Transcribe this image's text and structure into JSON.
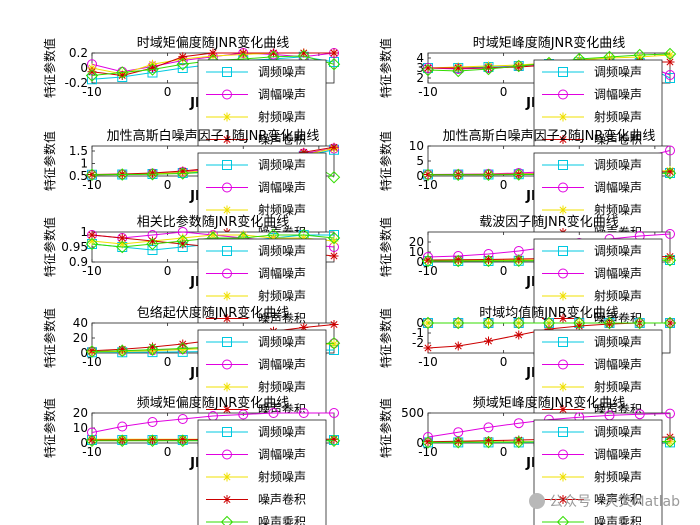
{
  "watermark": "公众号 · 天天Matlab",
  "chart_data": [
    {
      "type": "line",
      "title": "时域矩偏度随JNR变化曲线",
      "ylabel": "特征参数值",
      "xlabel": "JNR",
      "xlim": [
        -10,
        22
      ],
      "ylim": [
        -0.2,
        0.2
      ],
      "xticks": [
        "-10",
        "0",
        "10",
        "20"
      ],
      "yticks": [
        "-0.2",
        "0",
        "0.2"
      ],
      "x": [
        -10,
        -6,
        -2,
        2,
        6,
        10,
        14,
        18,
        22
      ],
      "series": [
        {
          "name": "调频噪声",
          "values": [
            -0.15,
            -0.12,
            -0.06,
            0.0,
            0.05,
            0.1,
            0.12,
            0.15,
            0.08
          ]
        },
        {
          "name": "调幅噪声",
          "values": [
            0.05,
            -0.05,
            0.02,
            0.1,
            0.15,
            0.2,
            0.18,
            0.15,
            0.2
          ]
        },
        {
          "name": "射频噪声",
          "values": [
            0.0,
            -0.08,
            0.05,
            0.12,
            0.16,
            0.18,
            0.2,
            0.2,
            0.2
          ]
        },
        {
          "name": "噪声卷积",
          "values": [
            -0.05,
            -0.1,
            0.0,
            0.15,
            0.2,
            0.2,
            0.2,
            0.2,
            0.2
          ]
        },
        {
          "name": "噪声乘积",
          "values": [
            -0.1,
            -0.06,
            -0.02,
            0.05,
            0.1,
            0.12,
            0.15,
            0.16,
            0.05
          ]
        }
      ]
    },
    {
      "type": "line",
      "title": "时域矩峰度随JNR变化曲线",
      "ylabel": "特征参数值",
      "xlabel": "JNR",
      "xlim": [
        -10,
        22
      ],
      "ylim": [
        1.5,
        4.5
      ],
      "xticks": [
        "-10",
        "0",
        "10",
        "20"
      ],
      "yticks": [
        "2",
        "3",
        "4"
      ],
      "x": [
        -10,
        -6,
        -2,
        2,
        6,
        10,
        14,
        18,
        22
      ],
      "series": [
        {
          "name": "调频噪声",
          "values": [
            3.0,
            3.0,
            3.1,
            3.2,
            3.4,
            3.6,
            3.5,
            3.5,
            2.0
          ]
        },
        {
          "name": "调幅噪声",
          "values": [
            3.0,
            2.9,
            3.0,
            3.2,
            3.4,
            3.5,
            3.6,
            3.5,
            2.3
          ]
        },
        {
          "name": "射频噪声",
          "values": [
            3.0,
            3.1,
            3.2,
            3.3,
            3.5,
            3.8,
            4.0,
            4.1,
            4.3
          ]
        },
        {
          "name": "噪声卷积",
          "values": [
            3.0,
            3.0,
            3.0,
            3.1,
            3.3,
            3.4,
            3.5,
            3.6,
            3.6
          ]
        },
        {
          "name": "噪声乘积",
          "values": [
            2.8,
            2.7,
            2.9,
            3.2,
            3.5,
            3.9,
            4.1,
            4.3,
            4.4
          ]
        }
      ]
    },
    {
      "type": "line",
      "title": "加性高斯白噪声因子1随JNR变化曲线",
      "ylabel": "特征参数值",
      "xlabel": "JNR",
      "xlim": [
        -10,
        22
      ],
      "ylim": [
        0.5,
        1.7
      ],
      "xticks": [
        "-10",
        "0",
        "10",
        "20"
      ],
      "yticks": [
        "0.5",
        "1",
        "1.5"
      ],
      "x": [
        -10,
        -6,
        -2,
        2,
        6,
        10,
        14,
        18,
        22
      ],
      "series": [
        {
          "name": "调频噪声",
          "values": [
            0.55,
            0.56,
            0.58,
            0.62,
            0.7,
            0.85,
            1.05,
            1.3,
            1.55
          ]
        },
        {
          "name": "调幅噪声",
          "values": [
            0.55,
            0.57,
            0.6,
            0.66,
            0.78,
            0.95,
            1.15,
            1.4,
            1.6
          ]
        },
        {
          "name": "射频噪声",
          "values": [
            0.55,
            0.56,
            0.59,
            0.64,
            0.74,
            0.9,
            1.1,
            1.35,
            1.6
          ]
        },
        {
          "name": "噪声卷积",
          "values": [
            0.56,
            0.58,
            0.62,
            0.7,
            0.82,
            1.0,
            1.2,
            1.45,
            1.65
          ]
        },
        {
          "name": "噪声乘积",
          "values": [
            0.55,
            0.56,
            0.57,
            0.6,
            0.66,
            0.75,
            0.9,
            1.2,
            0.45
          ]
        }
      ]
    },
    {
      "type": "line",
      "title": "加性高斯白噪声因子2随JNR变化曲线",
      "ylabel": "特征参数值",
      "xlabel": "JNR",
      "xlim": [
        -10,
        22
      ],
      "ylim": [
        0,
        10
      ],
      "xticks": [
        "-10",
        "0",
        "10",
        "20"
      ],
      "yticks": [
        "0",
        "5",
        "10"
      ],
      "x": [
        -10,
        -6,
        -2,
        2,
        6,
        10,
        14,
        18,
        22
      ],
      "series": [
        {
          "name": "调频噪声",
          "values": [
            0.5,
            0.5,
            0.5,
            0.6,
            0.7,
            0.8,
            0.9,
            1.0,
            1.0
          ]
        },
        {
          "name": "调幅噪声",
          "values": [
            0.5,
            0.6,
            0.7,
            1.0,
            1.5,
            2.5,
            4.0,
            6.0,
            8.5
          ]
        },
        {
          "name": "射频噪声",
          "values": [
            0.5,
            0.5,
            0.6,
            0.7,
            0.8,
            1.0,
            1.2,
            1.5,
            1.8
          ]
        },
        {
          "name": "噪声卷积",
          "values": [
            0.5,
            0.5,
            0.5,
            0.6,
            0.7,
            0.9,
            1.0,
            1.2,
            1.4
          ]
        },
        {
          "name": "噪声乘积",
          "values": [
            0.4,
            0.4,
            0.4,
            0.5,
            0.5,
            0.6,
            0.7,
            0.8,
            0.9
          ]
        }
      ]
    },
    {
      "type": "line",
      "title": "相关比参数随JNR变化曲线",
      "ylabel": "特征参数值",
      "xlabel": "JNR",
      "xlim": [
        -10,
        22
      ],
      "ylim": [
        0.9,
        1.0
      ],
      "xticks": [
        "-10",
        "0",
        "10",
        "20"
      ],
      "yticks": [
        "0.9",
        "0.95",
        "1"
      ],
      "x": [
        -10,
        -6,
        -2,
        2,
        6,
        10,
        14,
        18,
        22
      ],
      "series": [
        {
          "name": "调频噪声",
          "values": [
            0.96,
            0.95,
            0.94,
            0.95,
            0.96,
            0.97,
            0.98,
            0.99,
            0.99
          ]
        },
        {
          "name": "调幅噪声",
          "values": [
            0.99,
            0.98,
            0.99,
            1.0,
            0.99,
            0.98,
            0.97,
            0.96,
            0.95
          ]
        },
        {
          "name": "射频噪声",
          "values": [
            0.97,
            0.96,
            0.97,
            0.98,
            0.99,
            0.99,
            0.98,
            0.98,
            0.97
          ]
        },
        {
          "name": "噪声卷积",
          "values": [
            0.99,
            0.98,
            0.97,
            0.96,
            0.95,
            0.95,
            0.94,
            0.93,
            0.92
          ]
        },
        {
          "name": "噪声乘积",
          "values": [
            0.96,
            0.95,
            0.96,
            0.97,
            0.98,
            0.98,
            0.99,
            0.99,
            0.98
          ]
        }
      ]
    },
    {
      "type": "line",
      "title": "载波因子随JNR变化曲线",
      "ylabel": "特征参数值",
      "xlabel": "JNR",
      "xlim": [
        -10,
        22
      ],
      "ylim": [
        0,
        30
      ],
      "xticks": [
        "-10",
        "0",
        "10",
        "20"
      ],
      "yticks": [
        "0",
        "10",
        "20"
      ],
      "x": [
        -10,
        -6,
        -2,
        2,
        6,
        10,
        14,
        18,
        22
      ],
      "series": [
        {
          "name": "调频噪声",
          "values": [
            1.0,
            1.0,
            1.0,
            1.2,
            1.4,
            1.6,
            1.8,
            2.0,
            2.0
          ]
        },
        {
          "name": "调幅噪声",
          "values": [
            5.0,
            6.0,
            8.0,
            11.0,
            15.0,
            19.0,
            23.0,
            26.0,
            28.0
          ]
        },
        {
          "name": "射频噪声",
          "values": [
            1.5,
            1.6,
            1.8,
            2.0,
            2.3,
            2.6,
            3.0,
            3.3,
            3.5
          ]
        },
        {
          "name": "噪声卷积",
          "values": [
            2.0,
            2.2,
            2.5,
            3.0,
            3.5,
            4.0,
            4.5,
            5.0,
            5.5
          ]
        },
        {
          "name": "噪声乘积",
          "values": [
            1.0,
            1.0,
            1.1,
            1.2,
            1.3,
            1.4,
            1.5,
            1.6,
            1.7
          ]
        }
      ]
    },
    {
      "type": "line",
      "title": "包络起伏度随JNR变化曲线",
      "ylabel": "特征参数值",
      "xlabel": "JNR",
      "xlim": [
        -10,
        22
      ],
      "ylim": [
        0,
        40
      ],
      "xticks": [
        "-10",
        "0",
        "10",
        "20"
      ],
      "yticks": [
        "0",
        "20",
        "40"
      ],
      "x": [
        -10,
        -6,
        -2,
        2,
        6,
        10,
        14,
        18,
        22
      ],
      "series": [
        {
          "name": "调频噪声",
          "values": [
            1.0,
            1.0,
            1.2,
            1.5,
            2.0,
            2.5,
            3.0,
            3.5,
            4.0
          ]
        },
        {
          "name": "调幅噪声",
          "values": [
            2.0,
            2.5,
            3.5,
            5.0,
            7.0,
            9.0,
            11.0,
            12.0,
            13.0
          ]
        },
        {
          "name": "射频噪声",
          "values": [
            1.5,
            2.0,
            3.0,
            4.5,
            6.5,
            8.5,
            10.0,
            11.0,
            12.0
          ]
        },
        {
          "name": "噪声卷积",
          "values": [
            3.0,
            5.0,
            8.0,
            12.0,
            17.0,
            23.0,
            29.0,
            34.0,
            38.0
          ]
        },
        {
          "name": "噪声乘积",
          "values": [
            2.0,
            3.0,
            4.5,
            6.0,
            8.0,
            9.5,
            11.0,
            12.0,
            13.0
          ]
        }
      ]
    },
    {
      "type": "line",
      "title": "时域均值随JNR变化曲线",
      "ylabel": "特征参数值",
      "xlabel": "JNR",
      "xlim": [
        -10,
        22
      ],
      "ylim": [
        -3,
        0
      ],
      "xticks": [
        "-10",
        "0",
        "10",
        "20"
      ],
      "yticks": [
        "-2",
        "-1",
        "0"
      ],
      "x": [
        -10,
        -6,
        -2,
        2,
        6,
        10,
        14,
        18,
        22
      ],
      "series": [
        {
          "name": "调频噪声",
          "values": [
            0.0,
            0.0,
            0.0,
            0.0,
            0.0,
            0.0,
            0.0,
            0.0,
            0.0
          ]
        },
        {
          "name": "调幅噪声",
          "values": [
            0.0,
            0.0,
            0.0,
            0.0,
            0.0,
            0.0,
            0.0,
            0.0,
            0.0
          ]
        },
        {
          "name": "射频噪声",
          "values": [
            0.0,
            0.0,
            0.0,
            0.0,
            0.0,
            0.0,
            0.0,
            0.0,
            0.0
          ]
        },
        {
          "name": "噪声卷积",
          "values": [
            -2.5,
            -2.3,
            -1.8,
            -1.2,
            -0.6,
            -0.3,
            -0.1,
            0.0,
            0.0
          ]
        },
        {
          "name": "噪声乘积",
          "values": [
            0.0,
            0.0,
            0.0,
            0.0,
            0.0,
            0.0,
            0.0,
            0.0,
            0.0
          ]
        }
      ]
    },
    {
      "type": "line",
      "title": "频域矩偏度随JNR变化曲线",
      "ylabel": "特征参数值",
      "xlabel": "JNR",
      "xlim": [
        -10,
        22
      ],
      "ylim": [
        0,
        20
      ],
      "xticks": [
        "-10",
        "0",
        "10",
        "20"
      ],
      "yticks": [
        "0",
        "10",
        "20"
      ],
      "x": [
        -10,
        -6,
        -2,
        2,
        6,
        10,
        14,
        18,
        22
      ],
      "series": [
        {
          "name": "调频噪声",
          "values": [
            2.0,
            2.0,
            2.0,
            2.0,
            2.0,
            2.0,
            2.0,
            2.0,
            2.0
          ]
        },
        {
          "name": "调幅噪声",
          "values": [
            7.0,
            11.0,
            14.0,
            16.0,
            18.0,
            19.0,
            20.0,
            20.0,
            20.0
          ]
        },
        {
          "name": "射频噪声",
          "values": [
            2.5,
            2.5,
            2.5,
            2.5,
            2.5,
            2.5,
            2.5,
            2.5,
            2.5
          ]
        },
        {
          "name": "噪声卷积",
          "values": [
            2.0,
            2.0,
            2.1,
            2.2,
            2.3,
            2.4,
            2.5,
            2.5,
            2.5
          ]
        },
        {
          "name": "噪声乘积",
          "values": [
            1.5,
            1.5,
            1.5,
            1.5,
            1.5,
            1.5,
            1.5,
            1.5,
            1.5
          ]
        }
      ]
    },
    {
      "type": "line",
      "title": "频域矩峰度随JNR变化曲线",
      "ylabel": "特征参数值",
      "xlabel": "JNR",
      "xlim": [
        -10,
        22
      ],
      "ylim": [
        0,
        500
      ],
      "xticks": [
        "-10",
        "0",
        "10",
        "20"
      ],
      "yticks": [
        "0",
        "500"
      ],
      "x": [
        -10,
        -6,
        -2,
        2,
        6,
        10,
        14,
        18,
        22
      ],
      "series": [
        {
          "name": "调频噪声",
          "values": [
            10,
            10,
            10,
            10,
            10,
            10,
            10,
            10,
            10
          ]
        },
        {
          "name": "调幅噪声",
          "values": [
            100,
            180,
            260,
            330,
            390,
            430,
            460,
            480,
            490
          ]
        },
        {
          "name": "射频噪声",
          "values": [
            20,
            20,
            20,
            20,
            20,
            20,
            20,
            20,
            20
          ]
        },
        {
          "name": "噪声卷积",
          "values": [
            20,
            30,
            40,
            50,
            60,
            70,
            80,
            90,
            100
          ]
        },
        {
          "name": "噪声乘积",
          "values": [
            10,
            12,
            14,
            16,
            18,
            20,
            22,
            24,
            26
          ]
        }
      ]
    }
  ],
  "style": {
    "series_colors": [
      "#00C8E0",
      "#E000E0",
      "#F0E000",
      "#CC0000",
      "#33DD00"
    ],
    "series_markers": [
      "square",
      "circle",
      "star",
      "star",
      "diamond"
    ]
  }
}
